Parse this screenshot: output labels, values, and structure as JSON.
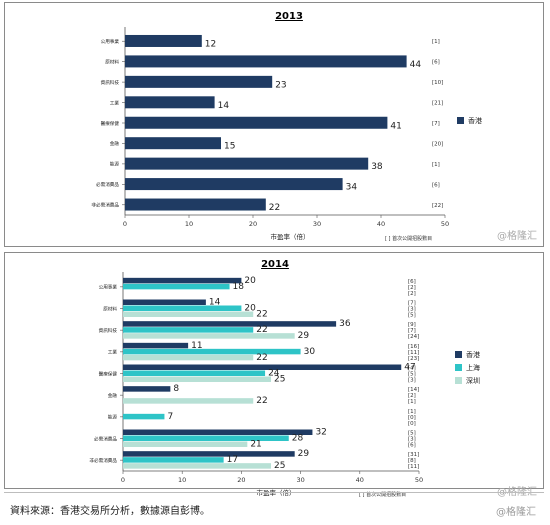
{
  "chart_data": [
    {
      "type": "bar",
      "title": "2013",
      "xlabel": "市盈率（倍）",
      "xlim": [
        0,
        50
      ],
      "xticks": [
        0,
        10,
        20,
        30,
        40,
        50
      ],
      "categories": [
        "公用事業",
        "原材料",
        "資訊科技",
        "工業",
        "醫療保健",
        "金融",
        "能源",
        "必需消費品",
        "非必需消費品"
      ],
      "series": [
        {
          "name": "香港",
          "color": "#1f3b63",
          "values": [
            12,
            44,
            23,
            14,
            41,
            15,
            38,
            34,
            22
          ]
        }
      ],
      "ipo_counts": [
        [
          "[1]"
        ],
        [
          "[6]"
        ],
        [
          "[10]"
        ],
        [
          "[21]"
        ],
        [
          "[7]"
        ],
        [
          "[20]"
        ],
        [
          "[1]"
        ],
        [
          "[6]"
        ],
        [
          "[22]"
        ]
      ],
      "note": "[ ] 首次公開招股數目",
      "legend_position": "right",
      "grid": false
    },
    {
      "type": "bar",
      "title": "2014",
      "xlabel": "市盈率（倍）",
      "xlim": [
        0,
        50
      ],
      "xticks": [
        0,
        10,
        20,
        30,
        40,
        50
      ],
      "categories": [
        "公用事業",
        "原材料",
        "資訊科技",
        "工業",
        "醫療保健",
        "金融",
        "能源",
        "必需消費品",
        "非必需消費品"
      ],
      "series": [
        {
          "name": "香港",
          "color": "#1f3b63",
          "values": [
            20,
            14,
            36,
            11,
            47,
            8,
            null,
            32,
            29
          ]
        },
        {
          "name": "上海",
          "color": "#2ec4c7",
          "values": [
            18,
            20,
            22,
            30,
            24,
            null,
            7,
            28,
            17
          ]
        },
        {
          "name": "深圳",
          "color": "#b7e0d5",
          "values": [
            null,
            22,
            29,
            22,
            25,
            22,
            null,
            21,
            25
          ]
        }
      ],
      "ipo_counts": [
        [
          "[6]",
          "[2]",
          "[2]"
        ],
        [
          "[7]",
          "[3]",
          "[5]"
        ],
        [
          "[9]",
          "[7]",
          "[24]"
        ],
        [
          "[16]",
          "[11]",
          "[23]"
        ],
        [
          "[4]",
          "[5]",
          "[3]"
        ],
        [
          "[14]",
          "[2]",
          "[1]"
        ],
        [
          "[1]",
          "[0]",
          "[0]"
        ],
        [
          "[5]",
          "[3]",
          "[6]"
        ],
        [
          "[31]",
          "[8]",
          "[11]"
        ]
      ],
      "note": "[ ] 首次公開招股數目",
      "legend_position": "right",
      "grid": false
    }
  ],
  "footer": {
    "source": "資料來源：香港交易所分析，數據源自彭博。",
    "watermark": "@格隆汇"
  },
  "watermark": "@格隆汇"
}
